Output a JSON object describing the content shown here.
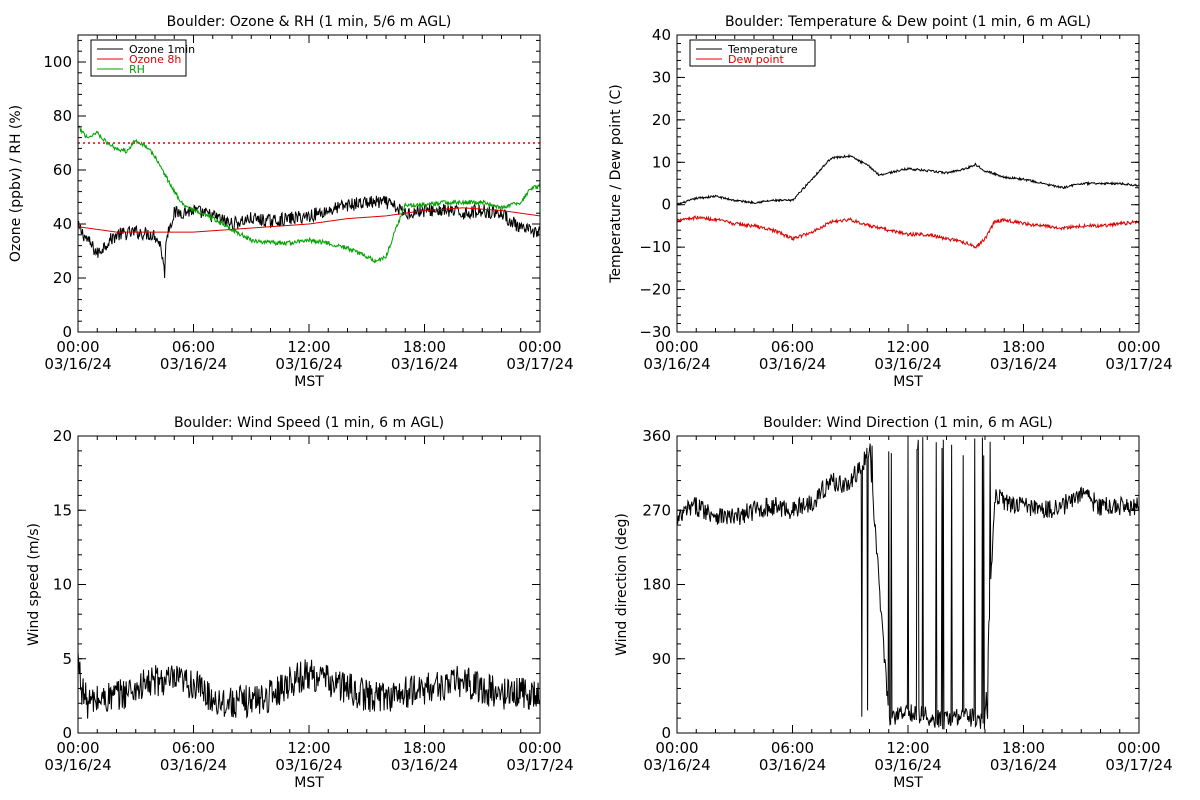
{
  "chart_data": [
    {
      "type": "line",
      "title": "Boulder: Ozone & RH (1 min, 5/6 m AGL)",
      "xlabel": "MST",
      "ylabel": "Ozone (ppbv) / RH (%)",
      "ylim": [
        0,
        110
      ],
      "yticks": [
        "0",
        "20",
        "40",
        "60",
        "80",
        "100"
      ],
      "xticks": [
        {
          "time": "00:00",
          "date": "03/16/24"
        },
        {
          "time": "06:00",
          "date": "03/16/24"
        },
        {
          "time": "12:00",
          "date": "03/16/24"
        },
        {
          "time": "18:00",
          "date": "03/16/24"
        },
        {
          "time": "00:00",
          "date": "03/17/24"
        }
      ],
      "x_hours": [
        0,
        24
      ],
      "legend": {
        "position": "top-left",
        "entries": [
          "Ozone 1min",
          "Ozone 8h",
          "RH"
        ]
      },
      "reference_line": {
        "y": 70,
        "color": "#dd0000",
        "style": "dotted"
      },
      "series": [
        {
          "name": "Ozone 1min",
          "color": "#000000",
          "noise": 2.5,
          "x": [
            0,
            0.5,
            1,
            1.5,
            2,
            3,
            4,
            4.3,
            4.5,
            4.6,
            5,
            6,
            7,
            8,
            9,
            10,
            11,
            12,
            13,
            14,
            15,
            16,
            17,
            18,
            19,
            20,
            21,
            22,
            23,
            24
          ],
          "y": [
            39,
            34,
            29,
            33,
            36,
            37,
            36,
            32,
            22,
            36,
            44,
            45,
            43,
            40,
            42,
            41,
            42,
            43,
            45,
            47,
            48,
            48,
            44,
            45,
            45,
            44,
            45,
            44,
            38,
            37
          ]
        },
        {
          "name": "Ozone 8h",
          "color": "#dd0000",
          "noise": 0,
          "x": [
            0,
            2,
            4,
            6,
            8,
            10,
            12,
            14,
            16,
            18,
            20,
            22,
            24
          ],
          "y": [
            39,
            37,
            37,
            37,
            38,
            39,
            40,
            42,
            43,
            45,
            46,
            45,
            43
          ]
        },
        {
          "name": "RH",
          "color": "#00a000",
          "noise": 0.8,
          "x": [
            0,
            0.5,
            1,
            1.5,
            2,
            2.5,
            3,
            3.5,
            4,
            5,
            5.5,
            6,
            7,
            8,
            9,
            10,
            11,
            12,
            13,
            14,
            15,
            15.5,
            16,
            16.5,
            17,
            18,
            19,
            20,
            21,
            22,
            23,
            23.5,
            24
          ],
          "y": [
            76,
            72,
            74,
            70,
            68,
            67,
            71,
            69,
            65,
            52,
            47,
            45,
            42,
            38,
            34,
            33,
            33,
            34,
            33,
            31,
            28,
            26,
            28,
            38,
            47,
            47,
            48,
            48,
            48,
            46,
            48,
            53,
            54
          ]
        }
      ]
    },
    {
      "type": "line",
      "title": "Boulder: Temperature & Dew point (1 min, 6 m AGL)",
      "xlabel": "MST",
      "ylabel": "Temperature / Dew point (C)",
      "ylim": [
        -30,
        40
      ],
      "yticks": [
        "−30",
        "−20",
        "−10",
        "0",
        "10",
        "20",
        "30",
        "40"
      ],
      "xticks": [
        {
          "time": "00:00",
          "date": "03/16/24"
        },
        {
          "time": "06:00",
          "date": "03/16/24"
        },
        {
          "time": "12:00",
          "date": "03/16/24"
        },
        {
          "time": "18:00",
          "date": "03/16/24"
        },
        {
          "time": "00:00",
          "date": "03/17/24"
        }
      ],
      "x_hours": [
        0,
        24
      ],
      "legend": {
        "position": "top-left",
        "entries": [
          "Temperature",
          "Dew point"
        ]
      },
      "series": [
        {
          "name": "Temperature",
          "color": "#000000",
          "noise": 0.25,
          "x": [
            0,
            1,
            2,
            3,
            4,
            5,
            6,
            7,
            8,
            9,
            10,
            10.5,
            11,
            12,
            13,
            14,
            15,
            15.5,
            16,
            17,
            18,
            19,
            20,
            21,
            22,
            23,
            24
          ],
          "y": [
            0,
            1.5,
            2,
            1,
            0.5,
            1,
            1,
            6,
            11,
            11.5,
            9,
            7,
            7.5,
            8.5,
            8,
            7.5,
            8.5,
            9.5,
            8,
            6.5,
            6,
            5,
            4,
            5,
            5,
            5,
            4.5
          ]
        },
        {
          "name": "Dew point",
          "color": "#dd0000",
          "noise": 0.4,
          "x": [
            0,
            1,
            2,
            3,
            4,
            5,
            6,
            7,
            8,
            9,
            10,
            11,
            12,
            13,
            14,
            15,
            15.5,
            16,
            16.5,
            17,
            18,
            19,
            20,
            21,
            22,
            23,
            24
          ],
          "y": [
            -3.5,
            -3,
            -3.5,
            -4.5,
            -5,
            -6,
            -8,
            -6.5,
            -4,
            -3.5,
            -5,
            -6,
            -7,
            -7,
            -8,
            -9,
            -10,
            -8,
            -4,
            -3.5,
            -4.5,
            -5,
            -5.5,
            -5,
            -5,
            -4.5,
            -4
          ]
        }
      ]
    },
    {
      "type": "line",
      "title": "Boulder: Wind Speed (1 min, 6 m AGL)",
      "xlabel": "MST",
      "ylabel": "Wind speed (m/s)",
      "ylim": [
        0,
        20
      ],
      "yticks": [
        "0",
        "5",
        "10",
        "15",
        "20"
      ],
      "xticks": [
        {
          "time": "00:00",
          "date": "03/16/24"
        },
        {
          "time": "06:00",
          "date": "03/16/24"
        },
        {
          "time": "12:00",
          "date": "03/16/24"
        },
        {
          "time": "18:00",
          "date": "03/16/24"
        },
        {
          "time": "00:00",
          "date": "03/17/24"
        }
      ],
      "x_hours": [
        0,
        24
      ],
      "series": [
        {
          "color": "#000000",
          "noise": 1.1,
          "x": [
            0,
            0.2,
            0.5,
            1,
            2,
            3,
            4,
            5,
            6,
            7,
            8,
            9,
            10,
            11,
            12,
            13,
            14,
            15,
            16,
            17,
            18,
            19,
            20,
            21,
            22,
            23,
            24
          ],
          "y": [
            5,
            3,
            2,
            2.2,
            2.5,
            3,
            3.5,
            3.5,
            3.3,
            2.3,
            2,
            2.2,
            2.5,
            3.5,
            4,
            3.5,
            3,
            2.5,
            2.5,
            2.7,
            3,
            3.2,
            3.5,
            3,
            2.6,
            2.8,
            2.5
          ]
        }
      ]
    },
    {
      "type": "line",
      "title": "Boulder: Wind Direction (1 min, 6 m AGL)",
      "xlabel": "MST",
      "ylabel": "Wind direction (deg)",
      "ylim": [
        0,
        360
      ],
      "yticks": [
        "0",
        "90",
        "180",
        "270",
        "360"
      ],
      "xticks": [
        {
          "time": "00:00",
          "date": "03/16/24"
        },
        {
          "time": "06:00",
          "date": "03/16/24"
        },
        {
          "time": "12:00",
          "date": "03/16/24"
        },
        {
          "time": "18:00",
          "date": "03/16/24"
        },
        {
          "time": "00:00",
          "date": "03/17/24"
        }
      ],
      "x_hours": [
        0,
        24
      ],
      "series": [
        {
          "color": "#000000",
          "noise": 12,
          "wrap": true,
          "wrap_windows": [
            [
              9.4,
              10.2
            ],
            [
              10.8,
              16.5
            ]
          ],
          "x": [
            0,
            0.5,
            1,
            2,
            3,
            4,
            5,
            6,
            7,
            8,
            9,
            9.4,
            10,
            11,
            12,
            13,
            14,
            15,
            16,
            16.5,
            17,
            18,
            19,
            20,
            21,
            22,
            23,
            24
          ],
          "y": [
            255,
            270,
            275,
            265,
            260,
            270,
            275,
            270,
            280,
            305,
            300,
            320,
            340,
            20,
            25,
            20,
            15,
            20,
            15,
            290,
            280,
            275,
            270,
            275,
            290,
            275,
            275,
            275
          ]
        }
      ]
    }
  ]
}
